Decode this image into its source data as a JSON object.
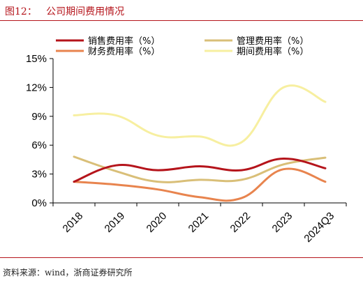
{
  "figure": {
    "title": "图12：   公司期间费用情况",
    "source": "资料来源：wind，浙商证券研究所"
  },
  "chart_data": {
    "type": "line",
    "categories": [
      "2018",
      "2019",
      "2020",
      "2021",
      "2022",
      "2023",
      "2024Q3"
    ],
    "ylim": [
      0,
      15
    ],
    "yticks": [
      0,
      3,
      6,
      9,
      12,
      15
    ],
    "ytick_labels": [
      "0%",
      "3%",
      "6%",
      "9%",
      "12%",
      "15%"
    ],
    "grid": false,
    "legend_position": "top",
    "series": [
      {
        "name": "销售费用率（%）",
        "color": "#b5141b",
        "values": [
          2.2,
          3.9,
          3.4,
          3.8,
          3.4,
          4.6,
          3.6
        ]
      },
      {
        "name": "管理费用率（%）",
        "color": "#d9bf78",
        "values": [
          4.8,
          3.3,
          2.2,
          2.4,
          2.4,
          4.0,
          4.7
        ]
      },
      {
        "name": "财务费用率（%）",
        "color": "#e8844e",
        "values": [
          2.2,
          1.9,
          1.4,
          0.6,
          0.5,
          3.5,
          2.2
        ]
      },
      {
        "name": "期间费用率（%）",
        "color": "#f7efa0",
        "values": [
          9.1,
          9.1,
          7.0,
          6.9,
          6.3,
          12.0,
          10.5
        ]
      }
    ]
  }
}
